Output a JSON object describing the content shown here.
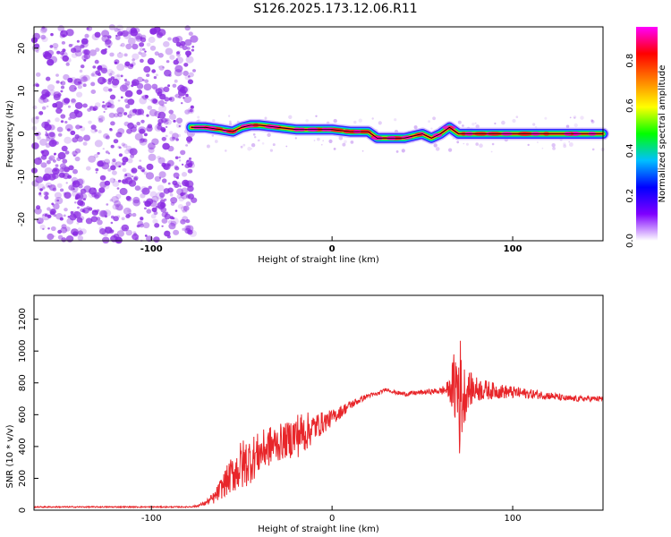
{
  "title": "S126.2025.173.12.06.R11",
  "colors": {
    "snr_line": "#e8262a",
    "ridge_line": "#000000",
    "speckle": "#8a2be2"
  },
  "chart_data": [
    {
      "type": "heatmap",
      "xlabel": "Height of straight line (km)",
      "ylabel": "Frequency (Hz)",
      "xlim": [
        -165,
        150
      ],
      "ylim": [
        -25,
        25
      ],
      "x_ticks": [
        -100,
        0,
        100
      ],
      "y_ticks": [
        -20,
        -10,
        0,
        10,
        20
      ],
      "colorbar": {
        "label": "Normalized spectral amplitude",
        "range": [
          0,
          0.95
        ],
        "ticks": [
          "0.0",
          "0.2",
          "0.4",
          "0.6",
          "0.8"
        ],
        "colormap": [
          "#ffffff",
          "#7f00ff",
          "#0000ff",
          "#00bfff",
          "#00ff00",
          "#ffff00",
          "#ff8000",
          "#ff0000",
          "#ff00ff"
        ]
      },
      "noise_region_x": [
        -165,
        -80
      ],
      "ridge": {
        "x": [
          -78,
          -70,
          -62,
          -55,
          -50,
          -45,
          -40,
          -30,
          -20,
          -10,
          0,
          10,
          20,
          25,
          30,
          40,
          50,
          55,
          60,
          65,
          70,
          80,
          90,
          100,
          110,
          120,
          130,
          140,
          150
        ],
        "freq": [
          1.5,
          1.5,
          1.0,
          0.5,
          1.5,
          2.0,
          2.0,
          1.5,
          1.0,
          1.0,
          1.0,
          0.5,
          0.5,
          -1.0,
          -1.0,
          -1.0,
          0.0,
          -1.0,
          0.0,
          1.5,
          0.0,
          0.0,
          0.0,
          0.0,
          0.0,
          0.0,
          0.0,
          0.0,
          0.0
        ]
      }
    },
    {
      "type": "line",
      "xlabel": "Height of straight line (km)",
      "ylabel": "SNR (10 * v/v)",
      "xlim": [
        -165,
        150
      ],
      "ylim": [
        0,
        1350
      ],
      "x_ticks": [
        -100,
        0,
        100
      ],
      "y_ticks": [
        0,
        200,
        400,
        600,
        800,
        1000,
        1200
      ],
      "series": [
        {
          "x": [
            -165,
            -150,
            -130,
            -110,
            -90,
            -80,
            -75,
            -70,
            -65,
            -60,
            -55,
            -50,
            -45,
            -40,
            -35,
            -30,
            -25,
            -20,
            -15,
            -10,
            -5,
            0,
            5,
            10,
            15,
            20,
            25,
            30,
            35,
            40,
            50,
            60,
            65,
            68,
            70,
            72,
            75,
            80,
            90,
            100,
            110,
            120,
            130,
            140,
            150
          ],
          "values": [
            20,
            20,
            20,
            20,
            20,
            20,
            25,
            45,
            80,
            160,
            230,
            280,
            320,
            360,
            400,
            420,
            440,
            470,
            490,
            520,
            550,
            580,
            620,
            660,
            690,
            720,
            730,
            760,
            740,
            730,
            740,
            750,
            760,
            780,
            760,
            700,
            760,
            760,
            750,
            740,
            730,
            720,
            700,
            700,
            700
          ],
          "noise": [
            4,
            4,
            4,
            4,
            4,
            4,
            6,
            15,
            40,
            80,
            120,
            170,
            150,
            130,
            130,
            120,
            110,
            150,
            130,
            90,
            70,
            50,
            40,
            30,
            20,
            15,
            12,
            10,
            12,
            15,
            15,
            20,
            60,
            250,
            500,
            250,
            120,
            80,
            50,
            40,
            30,
            25,
            20,
            18,
            18
          ]
        }
      ]
    }
  ]
}
